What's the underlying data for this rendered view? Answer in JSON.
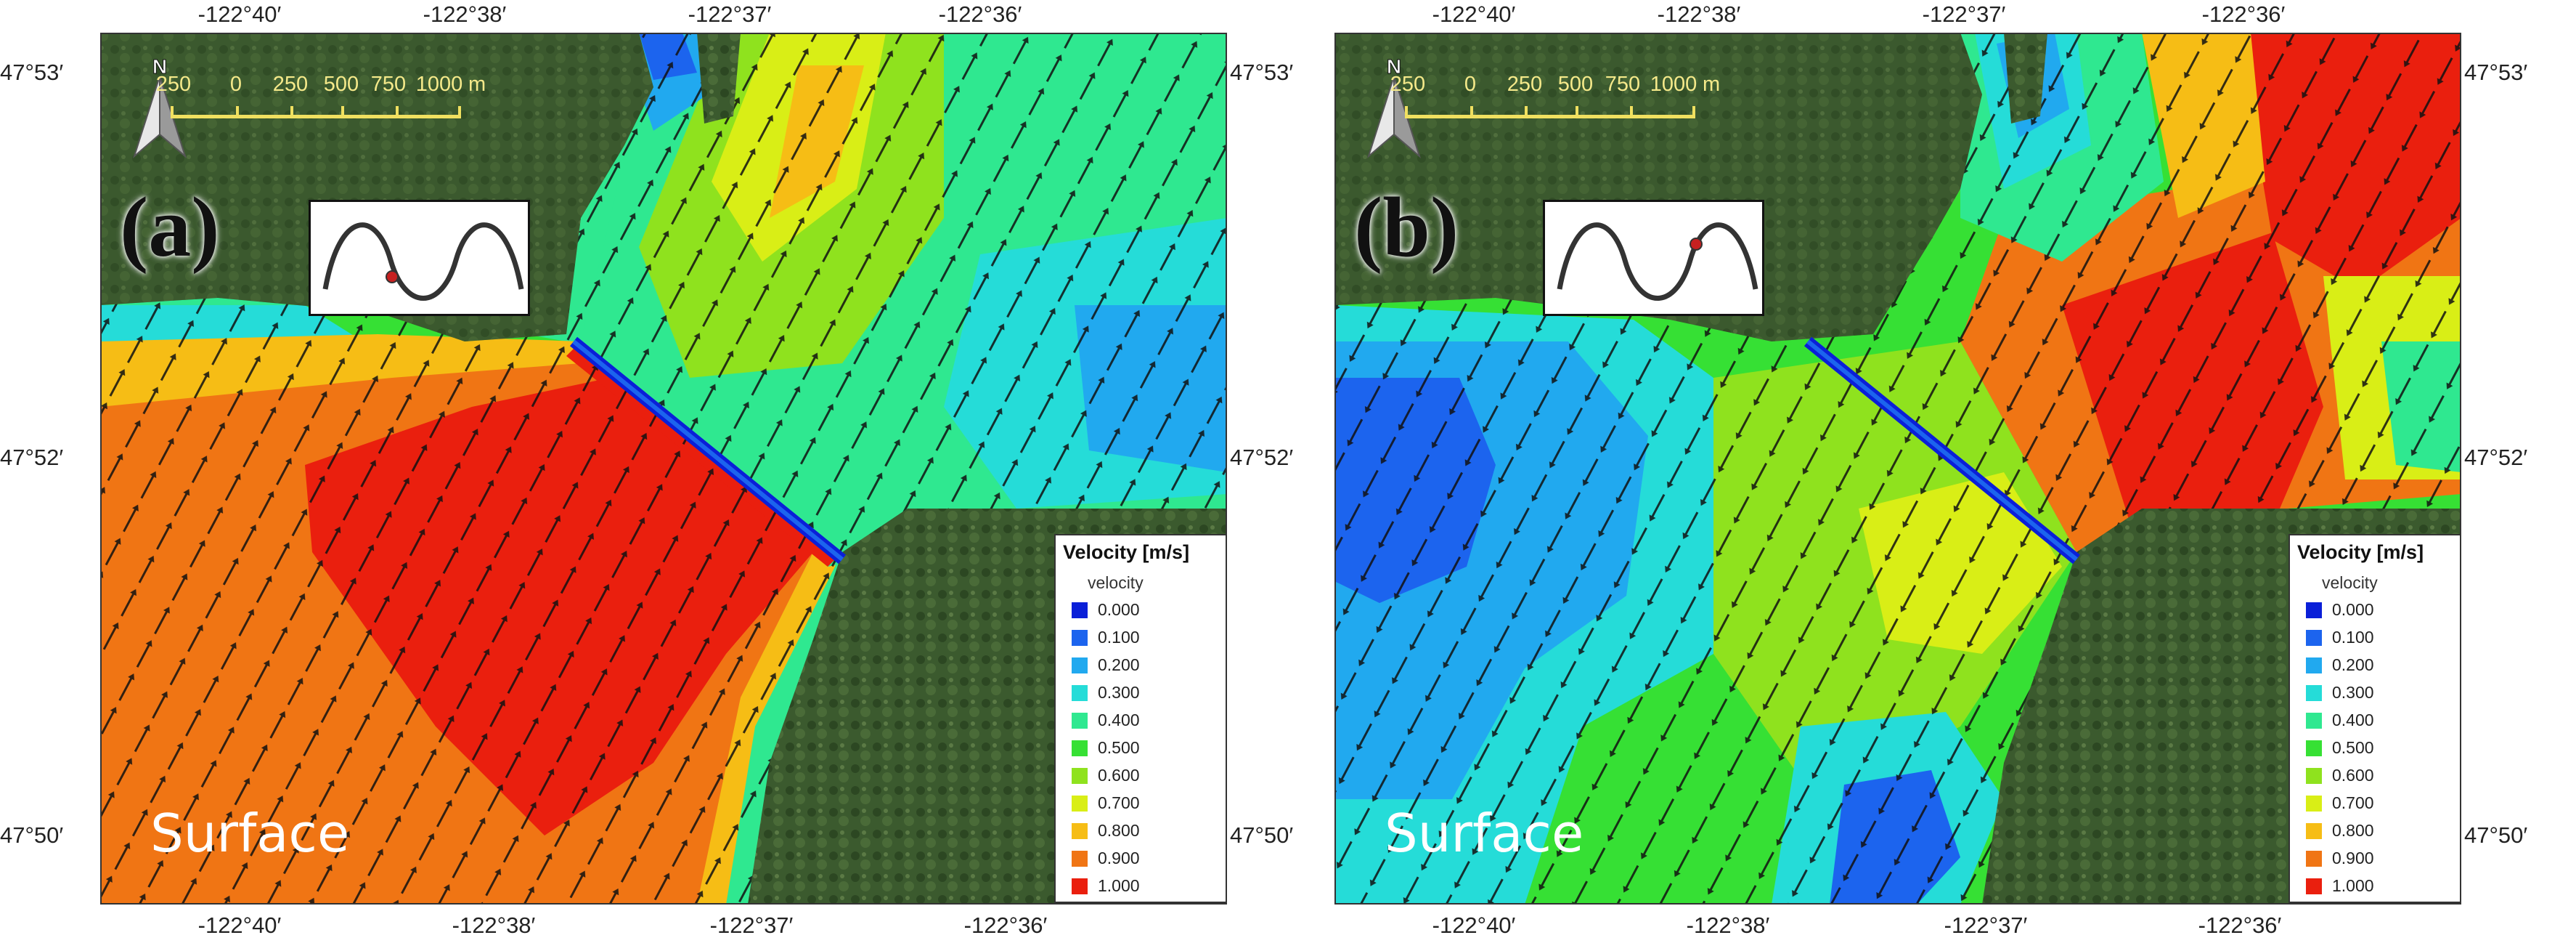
{
  "legend": {
    "title": "Velocity [m/s]",
    "subtitle": "velocity",
    "items": [
      {
        "label": "0.000",
        "color": "#0a1fd8"
      },
      {
        "label": "0.100",
        "color": "#1c64ee"
      },
      {
        "label": "0.200",
        "color": "#21a9ef"
      },
      {
        "label": "0.300",
        "color": "#25dcd8"
      },
      {
        "label": "0.400",
        "color": "#2fe890"
      },
      {
        "label": "0.500",
        "color": "#36e034"
      },
      {
        "label": "0.600",
        "color": "#8fe21e"
      },
      {
        "label": "0.700",
        "color": "#d9ee16"
      },
      {
        "label": "0.800",
        "color": "#f6bd15"
      },
      {
        "label": "0.900",
        "color": "#f07514"
      },
      {
        "label": "1.000",
        "color": "#ea1f0e"
      }
    ]
  },
  "scale_bar": {
    "labels": [
      "250",
      "0",
      "250",
      "500",
      "750",
      "1000"
    ],
    "unit": "m"
  },
  "compass": {
    "letter": "N",
    "icon": "north-arrow-icon"
  },
  "wave_icon": "tidal-wave-icon",
  "ticks": {
    "top": [
      "-122°40′",
      "-122°38′",
      "-122°37′",
      "-122°36′"
    ],
    "bottom": [
      "-122°40′",
      "-122°38′",
      "-122°37′",
      "-122°36′"
    ],
    "left": [
      "47°53′",
      "47°52′",
      "47°50′"
    ],
    "right": [
      "47°53′",
      "47°52′",
      "47°50′"
    ]
  },
  "panels": [
    {
      "label": "(a)",
      "layer": "Surface",
      "tide_phase": "trough"
    },
    {
      "label": "(b)",
      "layer": "Surface",
      "tide_phase": "crest"
    }
  ]
}
